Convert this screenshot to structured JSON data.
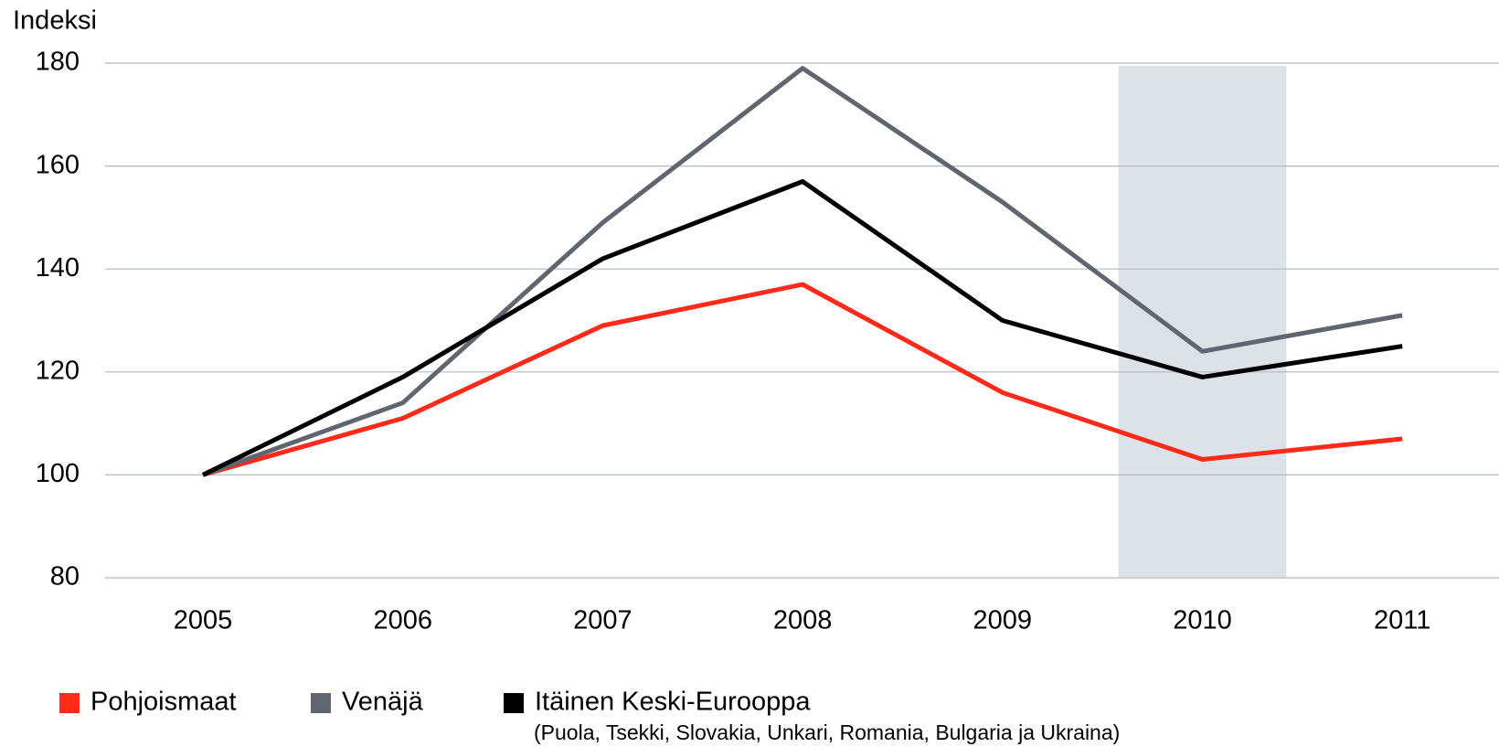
{
  "chart_data": {
    "type": "line",
    "y_label": "Indeksi",
    "categories": [
      "2005",
      "2006",
      "2007",
      "2008",
      "2009",
      "2010",
      "2011"
    ],
    "series": [
      {
        "name": "Pohjoismaat",
        "color": "#ff2a1a",
        "values": [
          100,
          111,
          129,
          137,
          116,
          103,
          107
        ]
      },
      {
        "name": "Venäjä",
        "color": "#5f6670",
        "values": [
          100,
          114,
          149,
          179,
          153,
          124,
          131
        ]
      },
      {
        "name": "Itäinen Keski-Eurooppa",
        "color": "#000000",
        "values": [
          100,
          119,
          142,
          157,
          130,
          119,
          125
        ]
      }
    ],
    "legend_note": "(Puola, Tsekki, Slovakia, Unkari, Romania, Bulgaria ja Ukraina)",
    "ylim": [
      80,
      180
    ],
    "yticks": [
      80,
      100,
      120,
      140,
      160,
      180
    ],
    "grid": true,
    "legend": "bottom"
  }
}
